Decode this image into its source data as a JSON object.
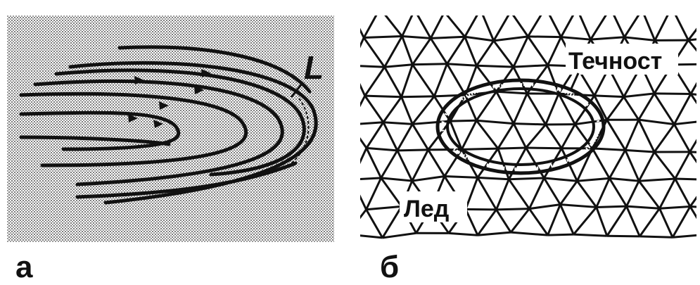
{
  "panels": [
    {
      "id": "a",
      "letter": "а",
      "curve_label": "L"
    },
    {
      "id": "b",
      "letter": "б",
      "liquid_label": "Течност",
      "ice_label": "Лед"
    }
  ],
  "colors": {
    "ink": "#111111",
    "background": "#ffffff",
    "stipple": "#8a8a8a"
  }
}
